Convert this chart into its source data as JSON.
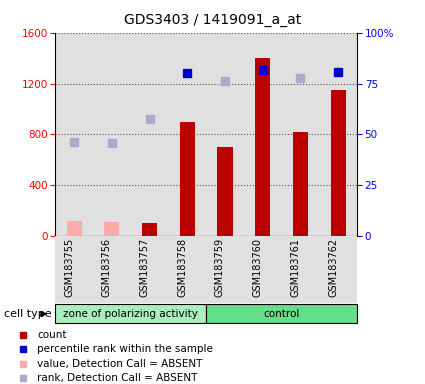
{
  "title": "GDS3403 / 1419091_a_at",
  "samples": [
    "GSM183755",
    "GSM183756",
    "GSM183757",
    "GSM183758",
    "GSM183759",
    "GSM183760",
    "GSM183761",
    "GSM183762"
  ],
  "bar_values": [
    null,
    null,
    100,
    900,
    700,
    1400,
    820,
    1150
  ],
  "bar_absent_values": [
    120,
    110,
    null,
    null,
    null,
    null,
    null,
    null
  ],
  "rank_values": [
    null,
    null,
    null,
    1280,
    null,
    1310,
    null,
    1290
  ],
  "rank_absent_values": [
    740,
    730,
    920,
    null,
    1220,
    null,
    1240,
    null
  ],
  "ylim_left": [
    0,
    1600
  ],
  "ylim_right": [
    0,
    100
  ],
  "yticks_left": [
    0,
    400,
    800,
    1200,
    1600
  ],
  "yticks_right": [
    0,
    25,
    50,
    75,
    100
  ],
  "ytick_labels_right": [
    "0",
    "25",
    "50",
    "75",
    "100%"
  ],
  "bar_color": "#bb0000",
  "bar_absent_color": "#ffaaaa",
  "rank_color": "#0000cc",
  "rank_absent_color": "#aaaacc",
  "group1_color": "#aaeebb",
  "group2_color": "#66dd88",
  "col_bg_color": "#e0e0e0",
  "plot_bg": "#ffffff"
}
